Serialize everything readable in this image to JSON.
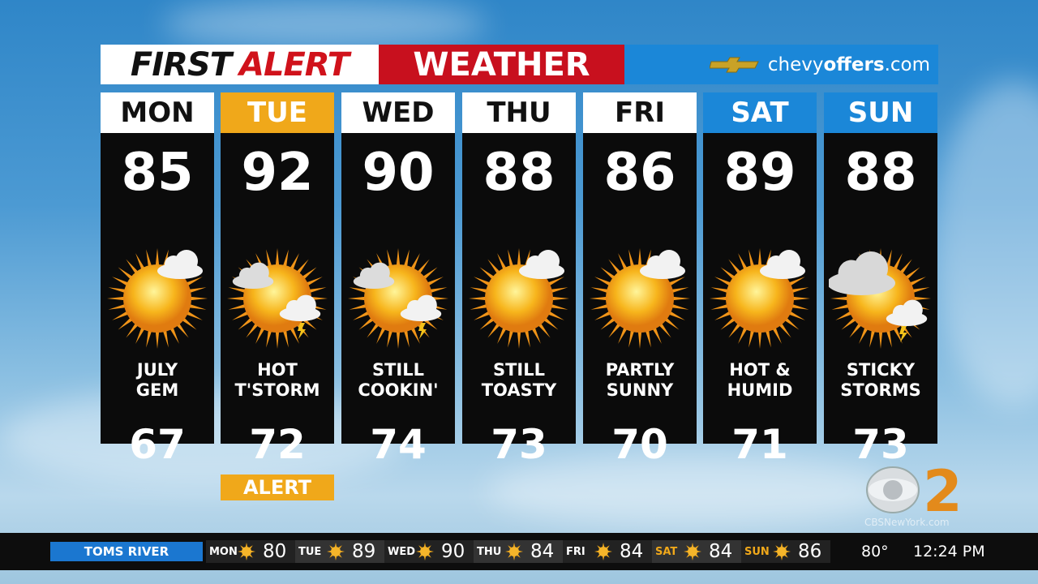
{
  "header": {
    "first": "FIRST",
    "alert": "ALERT",
    "weather": "WEATHER",
    "sponsor_pre": "chevy",
    "sponsor_bold": "offers",
    "sponsor_post": ".com"
  },
  "days": [
    {
      "day": "MON",
      "hi": "85",
      "desc1": "JULY",
      "desc2": "GEM",
      "lo": "67",
      "header_color": "#ffffff",
      "icon": "sun-partly-cloudy"
    },
    {
      "day": "TUE",
      "hi": "92",
      "desc1": "HOT",
      "desc2": "T'STORM",
      "lo": "72",
      "header_color": "#f0a81a",
      "icon": "sun-thunderstorm",
      "alert": "ALERT"
    },
    {
      "day": "WED",
      "hi": "90",
      "desc1": "STILL",
      "desc2": "COOKIN'",
      "lo": "74",
      "header_color": "#ffffff",
      "icon": "sun-thunderstorm"
    },
    {
      "day": "THU",
      "hi": "88",
      "desc1": "STILL",
      "desc2": "TOASTY",
      "lo": "73",
      "header_color": "#ffffff",
      "icon": "sun-partly-cloudy"
    },
    {
      "day": "FRI",
      "hi": "86",
      "desc1": "PARTLY",
      "desc2": "SUNNY",
      "lo": "70",
      "header_color": "#ffffff",
      "icon": "sun-partly-cloudy"
    },
    {
      "day": "SAT",
      "hi": "89",
      "desc1": "HOT &",
      "desc2": "HUMID",
      "lo": "71",
      "header_color": "#1b87d8",
      "icon": "sun-partly-cloudy"
    },
    {
      "day": "SUN",
      "hi": "88",
      "desc1": "STICKY",
      "desc2": "STORMS",
      "lo": "73",
      "header_color": "#1b87d8",
      "icon": "cloudy-thunderstorm"
    }
  ],
  "logo": {
    "text": "CBSNewYork.com",
    "channel": "2"
  },
  "ticker": {
    "location": "TOMS RIVER",
    "items": [
      {
        "day": "MON",
        "temp": "80"
      },
      {
        "day": "TUE",
        "temp": "89"
      },
      {
        "day": "WED",
        "temp": "90"
      },
      {
        "day": "THU",
        "temp": "84"
      },
      {
        "day": "FRI",
        "temp": "84"
      },
      {
        "day": "SAT",
        "temp": "84",
        "weekend": true
      },
      {
        "day": "SUN",
        "temp": "86",
        "weekend": true
      }
    ],
    "current_temp": "80°",
    "time": "12:24 PM"
  },
  "colors": {
    "alert_red": "#c8101e",
    "sponsor_blue": "#1b87d8",
    "alert_gold": "#f0a81a"
  }
}
